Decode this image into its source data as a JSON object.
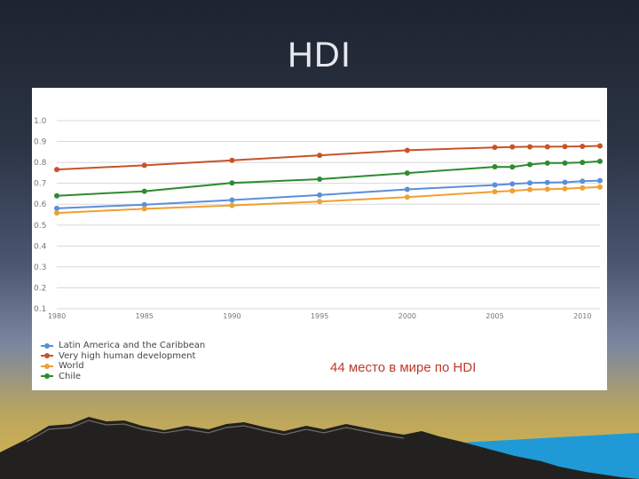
{
  "slide": {
    "title": "HDI",
    "note": "44 место в мире по HDI"
  },
  "chart_data": {
    "type": "line",
    "title": "",
    "xlabel": "",
    "ylabel": "",
    "x": [
      1980,
      1985,
      1990,
      1995,
      2000,
      2005,
      2006,
      2007,
      2008,
      2009,
      2010,
      2011
    ],
    "x_ticks": [
      "1980",
      "1985",
      "1990",
      "1995",
      "2000",
      "2005",
      "2010"
    ],
    "y_ticks": [
      "0.1",
      "0.2",
      "0.3",
      "0.4",
      "0.5",
      "0.6",
      "0.7",
      "0.8",
      "0.9",
      "1.0"
    ],
    "ylim": [
      0.1,
      1.0
    ],
    "grid": true,
    "legend_position": "bottom-left",
    "series": [
      {
        "name": "Latin America and the Caribbean",
        "color": "#5b8fd6",
        "values": [
          0.58,
          0.598,
          0.62,
          0.644,
          0.671,
          0.692,
          0.697,
          0.702,
          0.704,
          0.705,
          0.71,
          0.713
        ]
      },
      {
        "name": "Very high human development",
        "color": "#c8522a",
        "values": [
          0.766,
          0.786,
          0.81,
          0.834,
          0.858,
          0.872,
          0.874,
          0.875,
          0.875,
          0.876,
          0.877,
          0.879
        ]
      },
      {
        "name": "World",
        "color": "#f0a030",
        "values": [
          0.558,
          0.578,
          0.594,
          0.613,
          0.634,
          0.66,
          0.664,
          0.67,
          0.672,
          0.674,
          0.678,
          0.682
        ]
      },
      {
        "name": "Chile",
        "color": "#2e8b2e",
        "values": [
          0.64,
          0.662,
          0.702,
          0.72,
          0.749,
          0.779,
          0.778,
          0.79,
          0.797,
          0.797,
          0.8,
          0.805
        ]
      }
    ]
  }
}
